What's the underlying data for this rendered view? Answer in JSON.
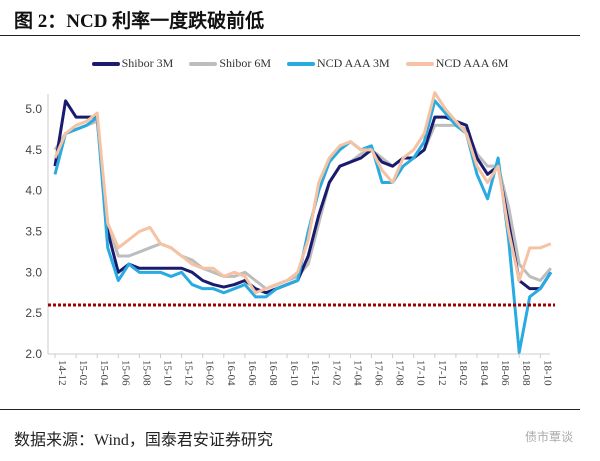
{
  "title": "图 2：NCD 利率一度跌破前低",
  "source": "数据来源：Wind，国泰君安证券研究",
  "watermark": "债市覃谈",
  "chart_data": {
    "type": "line",
    "title": "图 2：NCD 利率一度跌破前低",
    "xlabel": "",
    "ylabel": "",
    "ylim": [
      2.0,
      5.0
    ],
    "yticks": [
      "2.0",
      "2.5",
      "3.0",
      "3.5",
      "4.0",
      "4.5",
      "5.0"
    ],
    "xticks": [
      "14-12",
      "15-02",
      "15-04",
      "15-06",
      "15-08",
      "15-10",
      "15-12",
      "16-02",
      "16-04",
      "16-06",
      "16-08",
      "16-10",
      "16-12",
      "17-02",
      "17-04",
      "17-06",
      "17-08",
      "17-10",
      "17-12",
      "18-02",
      "18-04",
      "18-06",
      "18-08",
      "18-10"
    ],
    "x_start": "14-12",
    "x_step_months": 1,
    "grid": false,
    "legend_placement": "top",
    "reference_line": {
      "value": 2.6,
      "color": "#a00000",
      "style": "dotted"
    },
    "series": [
      {
        "name": "Shibor 3M",
        "color": "#1a1a6e",
        "values": [
          4.3,
          5.1,
          4.9,
          4.9,
          4.9,
          3.5,
          3.0,
          3.1,
          3.05,
          3.05,
          3.05,
          3.05,
          3.05,
          3.0,
          2.9,
          2.85,
          2.82,
          2.85,
          2.9,
          2.8,
          2.75,
          2.8,
          2.85,
          2.9,
          3.2,
          3.7,
          4.1,
          4.3,
          4.35,
          4.4,
          4.5,
          4.35,
          4.3,
          4.4,
          4.4,
          4.5,
          4.9,
          4.9,
          4.85,
          4.8,
          4.4,
          4.2,
          4.3,
          3.6,
          2.9,
          2.8,
          2.8,
          3.0
        ]
      },
      {
        "name": "Shibor 6M",
        "color": "#bdbdbd",
        "values": [
          4.5,
          4.7,
          4.75,
          4.8,
          4.85,
          3.6,
          3.2,
          3.2,
          3.25,
          3.3,
          3.35,
          3.3,
          3.2,
          3.15,
          3.05,
          3.0,
          2.95,
          2.95,
          3.0,
          2.9,
          2.8,
          2.85,
          2.9,
          2.95,
          3.1,
          3.6,
          4.1,
          4.3,
          4.35,
          4.45,
          4.5,
          4.4,
          4.3,
          4.4,
          4.4,
          4.5,
          4.8,
          4.8,
          4.8,
          4.75,
          4.45,
          4.3,
          4.3,
          3.8,
          3.1,
          2.95,
          2.9,
          3.05
        ]
      },
      {
        "name": "NCD AAA 3M",
        "color": "#29abe2",
        "values": [
          4.2,
          4.7,
          4.75,
          4.8,
          4.9,
          3.3,
          2.9,
          3.1,
          3.0,
          3.0,
          3.0,
          2.95,
          3.0,
          2.85,
          2.8,
          2.8,
          2.75,
          2.8,
          2.85,
          2.7,
          2.7,
          2.8,
          2.85,
          2.9,
          3.5,
          4.0,
          4.35,
          4.5,
          4.6,
          4.5,
          4.55,
          4.1,
          4.1,
          4.3,
          4.4,
          4.6,
          5.1,
          4.95,
          4.8,
          4.7,
          4.2,
          3.9,
          4.4,
          3.4,
          2.02,
          2.7,
          2.8,
          3.0
        ]
      },
      {
        "name": "NCD AAA 6M",
        "color": "#f5c3a3",
        "values": [
          4.4,
          4.7,
          4.8,
          4.85,
          4.95,
          3.6,
          3.3,
          3.4,
          3.5,
          3.55,
          3.35,
          3.3,
          3.2,
          3.1,
          3.05,
          3.05,
          2.95,
          3.0,
          2.95,
          2.75,
          2.8,
          2.85,
          2.9,
          3.0,
          3.4,
          4.1,
          4.4,
          4.55,
          4.6,
          4.5,
          4.5,
          4.25,
          4.1,
          4.4,
          4.5,
          4.7,
          5.2,
          5.0,
          4.85,
          4.7,
          4.3,
          4.1,
          4.3,
          3.5,
          2.9,
          3.3,
          3.3,
          3.35
        ]
      }
    ]
  }
}
